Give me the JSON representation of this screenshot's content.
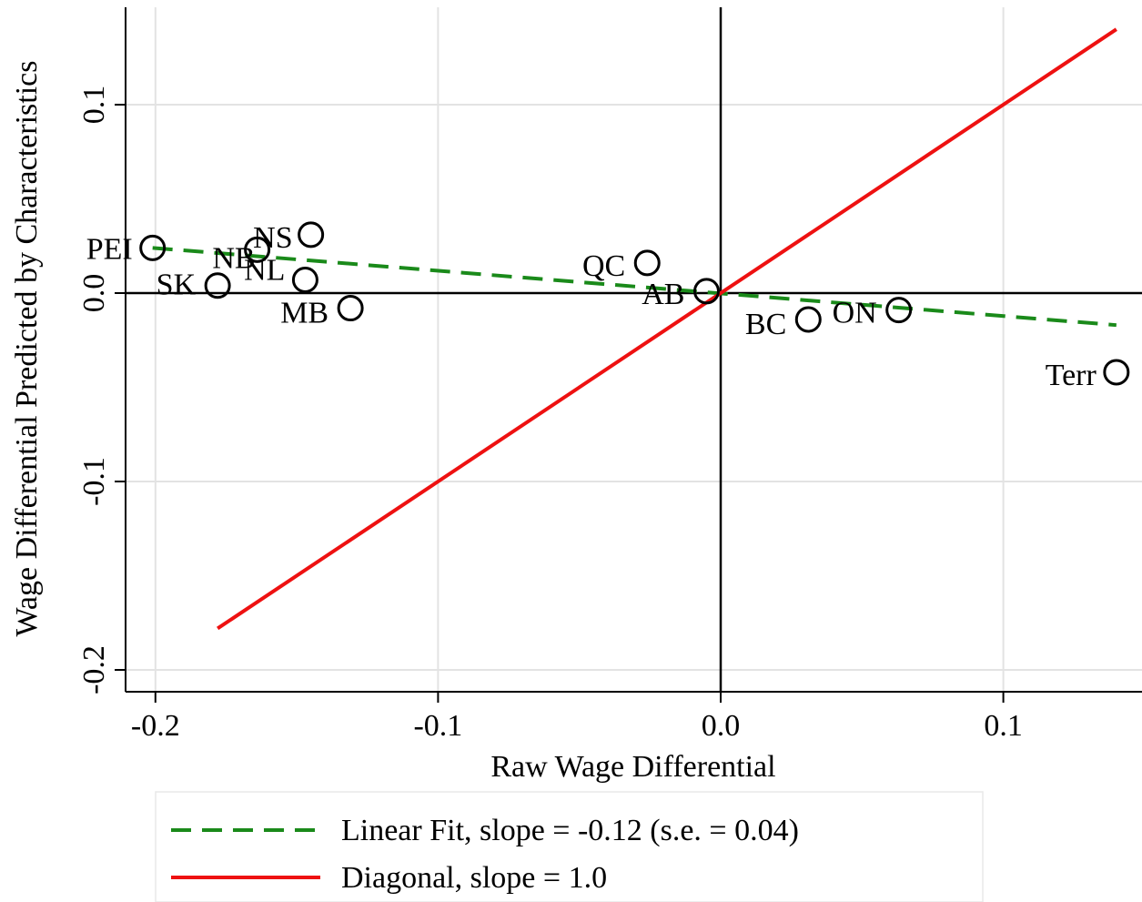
{
  "chart_data": {
    "type": "scatter",
    "title": "",
    "xlabel": "Raw Wage Differential",
    "ylabel": "Wage Differential Predicted by Characteristics",
    "xlim": [
      -0.21,
      0.15
    ],
    "ylim": [
      -0.21,
      0.15
    ],
    "grid": true,
    "x_ticks": [
      {
        "value": -0.2,
        "label": "-0.2"
      },
      {
        "value": -0.1,
        "label": "-0.1"
      },
      {
        "value": 0.0,
        "label": "0.0"
      },
      {
        "value": 0.1,
        "label": "0.1"
      }
    ],
    "y_ticks": [
      {
        "value": -0.2,
        "label": "-0.2"
      },
      {
        "value": -0.1,
        "label": "-0.1"
      },
      {
        "value": 0.0,
        "label": "0.0"
      },
      {
        "value": 0.1,
        "label": "0.1"
      }
    ],
    "points": [
      {
        "label": "PEI",
        "x": -0.201,
        "y": 0.024
      },
      {
        "label": "NB",
        "x": -0.164,
        "y": 0.023
      },
      {
        "label": "NS",
        "x": -0.145,
        "y": 0.031
      },
      {
        "label": "SK",
        "x": -0.178,
        "y": 0.004
      },
      {
        "label": "NL",
        "x": -0.147,
        "y": 0.007
      },
      {
        "label": "MB",
        "x": -0.131,
        "y": -0.008
      },
      {
        "label": "QC",
        "x": -0.026,
        "y": 0.016
      },
      {
        "label": "AB",
        "x": -0.005,
        "y": 0.001
      },
      {
        "label": "BC",
        "x": 0.031,
        "y": -0.014
      },
      {
        "label": "ON",
        "x": 0.063,
        "y": -0.009
      },
      {
        "label": "Terr",
        "x": 0.14,
        "y": -0.042
      }
    ],
    "lines": [
      {
        "name": "Linear Fit, slope = -0.12 (s.e. =  0.04)",
        "style": "dashed",
        "color": "#1a8a1a",
        "points": [
          [
            -0.201,
            0.024
          ],
          [
            0.14,
            -0.017
          ]
        ]
      },
      {
        "name": "Diagonal, slope = 1.0",
        "style": "solid",
        "color": "#ee1111",
        "points": [
          [
            -0.178,
            -0.178
          ],
          [
            0.14,
            0.14
          ]
        ]
      }
    ],
    "reference_lines": {
      "x": 0,
      "y": 0
    },
    "legend": {
      "placement": "bottom",
      "entries": [
        {
          "label": "Linear Fit, slope = -0.12 (s.e. =  0.04)",
          "style": "dashed",
          "color": "#1a8a1a"
        },
        {
          "label": "Diagonal, slope = 1.0",
          "style": "solid",
          "color": "#ee1111"
        }
      ]
    }
  }
}
